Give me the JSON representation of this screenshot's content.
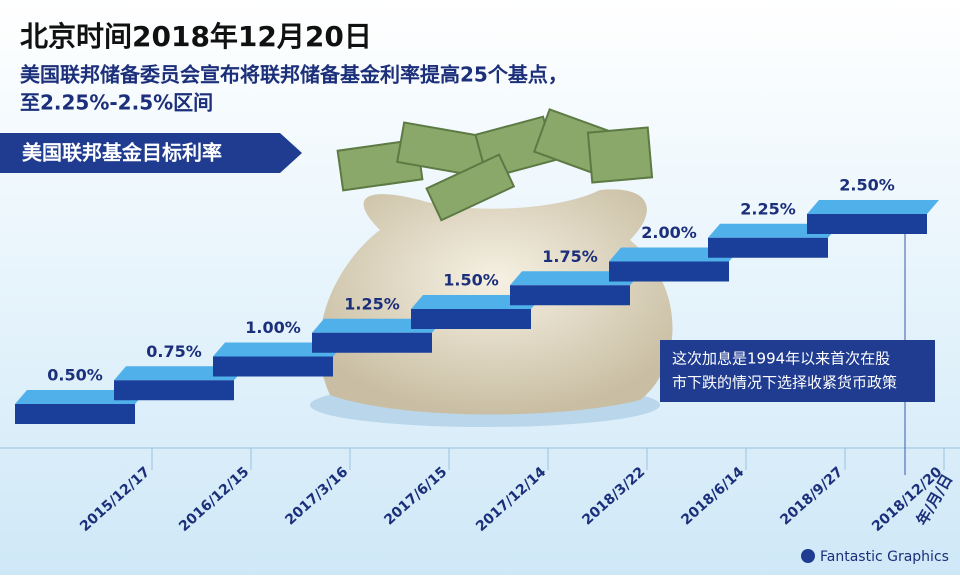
{
  "chart_data": {
    "type": "step",
    "title": "北京时间2018年12月20日",
    "subtitle": [
      "美国联邦储备委员会宣布将联邦储备基金利率提高25个基点，",
      "至2.25%-2.5%区间"
    ],
    "series_label": "美国联邦基金目标利率",
    "categories": [
      "2015/12/17",
      "2016/12/15",
      "2017/3/16",
      "2017/6/15",
      "2017/12/14",
      "2018/3/22",
      "2018/6/14",
      "2018/9/27",
      "2018/12/20"
    ],
    "values": [
      0.5,
      0.75,
      1.0,
      1.25,
      1.5,
      1.75,
      2.0,
      2.25,
      2.5
    ],
    "value_labels": [
      "0.50%",
      "0.75%",
      "1.00%",
      "1.25%",
      "1.50%",
      "1.75%",
      "2.00%",
      "2.25%",
      "2.50%"
    ],
    "x_axis_label": "年/月/日",
    "annotation": [
      "这次加息是1994年以来首次在股",
      "市下跌的情况下选择收紧货币政策"
    ],
    "credit": "Fantastic Graphics",
    "color": "#1a3f9a",
    "top_color": "#4fb0ea"
  }
}
